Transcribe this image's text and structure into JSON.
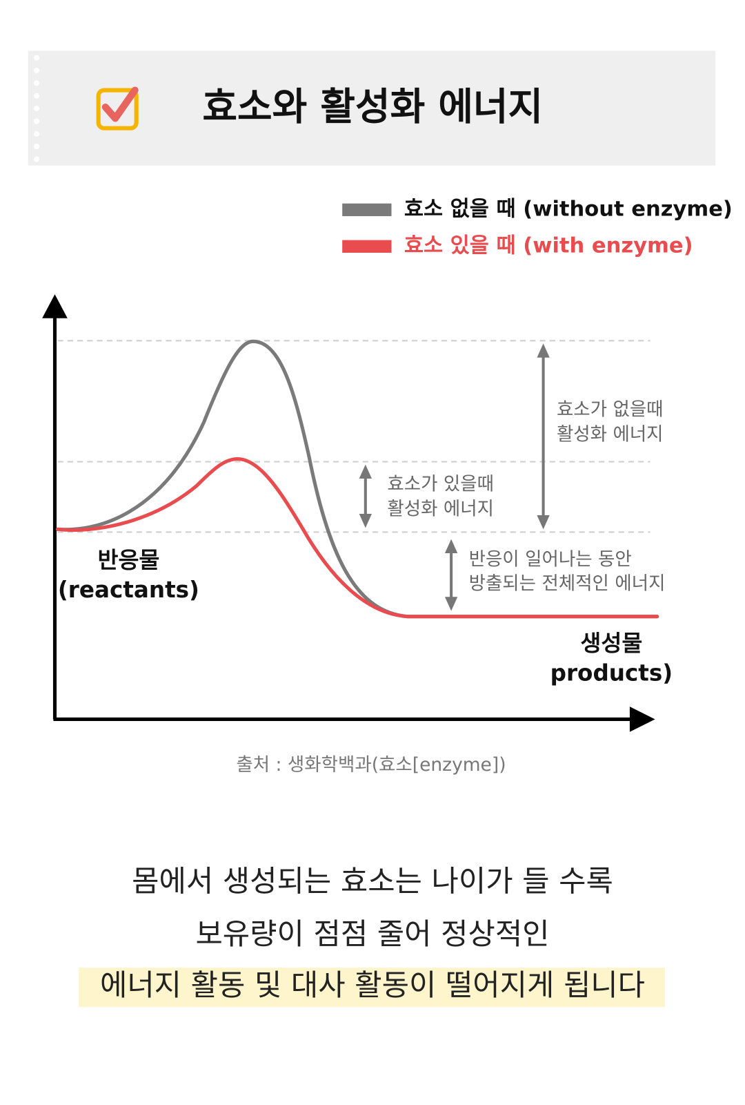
{
  "header": {
    "title": "효소와 활성화 에너지"
  },
  "legend": [
    {
      "label": "효소 없을 때 (without enzyme)",
      "color": "#7a7a7a"
    },
    {
      "label": "효소 있을 때 (with enzyme)",
      "color": "#e84c4f"
    }
  ],
  "diagram": {
    "reactants": [
      "반응물",
      "(reactants)"
    ],
    "products": [
      "생성물",
      "products)"
    ],
    "annotations": [
      {
        "lines": [
          "효소가 없을때",
          "활성화 에너지"
        ]
      },
      {
        "lines": [
          "효소가 있을때",
          "활성화 에너지"
        ]
      },
      {
        "lines": [
          "반응이 일어나는 동안",
          "방출되는 전체적인 에너지"
        ]
      }
    ]
  },
  "source": "출처 : 생화학백과(효소[enzyme])",
  "body": {
    "lines": [
      "몸에서 생성되는 효소는 나이가 들 수록",
      "보유량이 점점 줄어 정상적인",
      "에너지 활동 및 대사 활동이 떨어지게 됩니다"
    ]
  }
}
